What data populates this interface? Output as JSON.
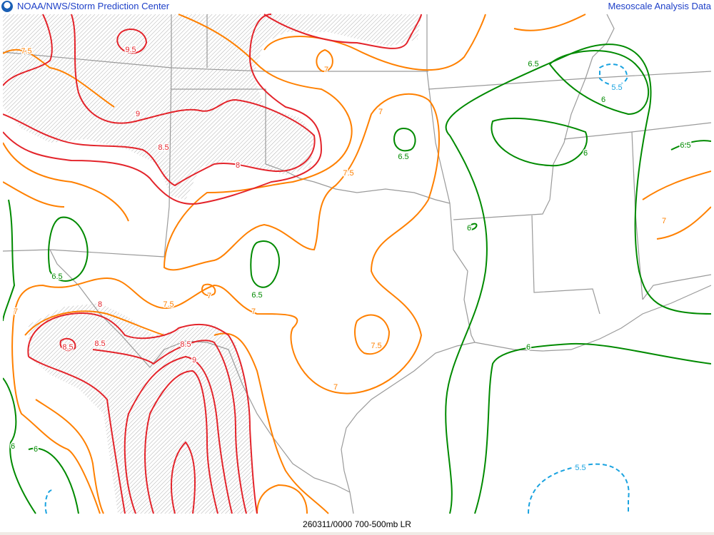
{
  "header": {
    "organization": "NOAA/NWS/Storm Prediction Center",
    "product_group": "Mesoscale Analysis Data",
    "logo": "noaa-logo"
  },
  "footer": {
    "caption": "260311/0000 700-500mb LR"
  },
  "colors": {
    "contour_high": "#e3242b",
    "contour_mid": "#ff8000",
    "contour_low": "#008a00",
    "contour_min": "#1aa3e0",
    "borders": "#999999",
    "brand": "#1e40c8"
  },
  "contour_labels": [
    {
      "value": "7.5",
      "color": "mid"
    },
    {
      "value": "9.5",
      "color": "high"
    },
    {
      "value": "7",
      "color": "mid"
    },
    {
      "value": "9",
      "color": "high"
    },
    {
      "value": "8.5",
      "color": "high"
    },
    {
      "value": "8",
      "color": "high"
    },
    {
      "value": "7",
      "color": "mid"
    },
    {
      "value": "7.5",
      "color": "mid"
    },
    {
      "value": "6.5",
      "color": "low"
    },
    {
      "value": "6.5",
      "color": "low"
    },
    {
      "value": "5.5",
      "color": "min"
    },
    {
      "value": "6",
      "color": "low"
    },
    {
      "value": "6.5",
      "color": "low"
    },
    {
      "value": "6",
      "color": "low"
    },
    {
      "value": "6",
      "color": "low"
    },
    {
      "value": "7",
      "color": "mid"
    },
    {
      "value": "6.5",
      "color": "low"
    },
    {
      "value": "6.5",
      "color": "low"
    },
    {
      "value": "7.5",
      "color": "mid"
    },
    {
      "value": "7",
      "color": "mid"
    },
    {
      "value": "7",
      "color": "mid"
    },
    {
      "value": "7",
      "color": "mid"
    },
    {
      "value": "8",
      "color": "high"
    },
    {
      "value": "8.5",
      "color": "high"
    },
    {
      "value": "8.5",
      "color": "high"
    },
    {
      "value": "8.5",
      "color": "high"
    },
    {
      "value": "9",
      "color": "high"
    },
    {
      "value": "7.5",
      "color": "mid"
    },
    {
      "value": "7",
      "color": "mid"
    },
    {
      "value": "6",
      "color": "low"
    },
    {
      "value": "6",
      "color": "low"
    },
    {
      "value": "5.5",
      "color": "min"
    },
    {
      "value": "6",
      "color": "low"
    }
  ]
}
